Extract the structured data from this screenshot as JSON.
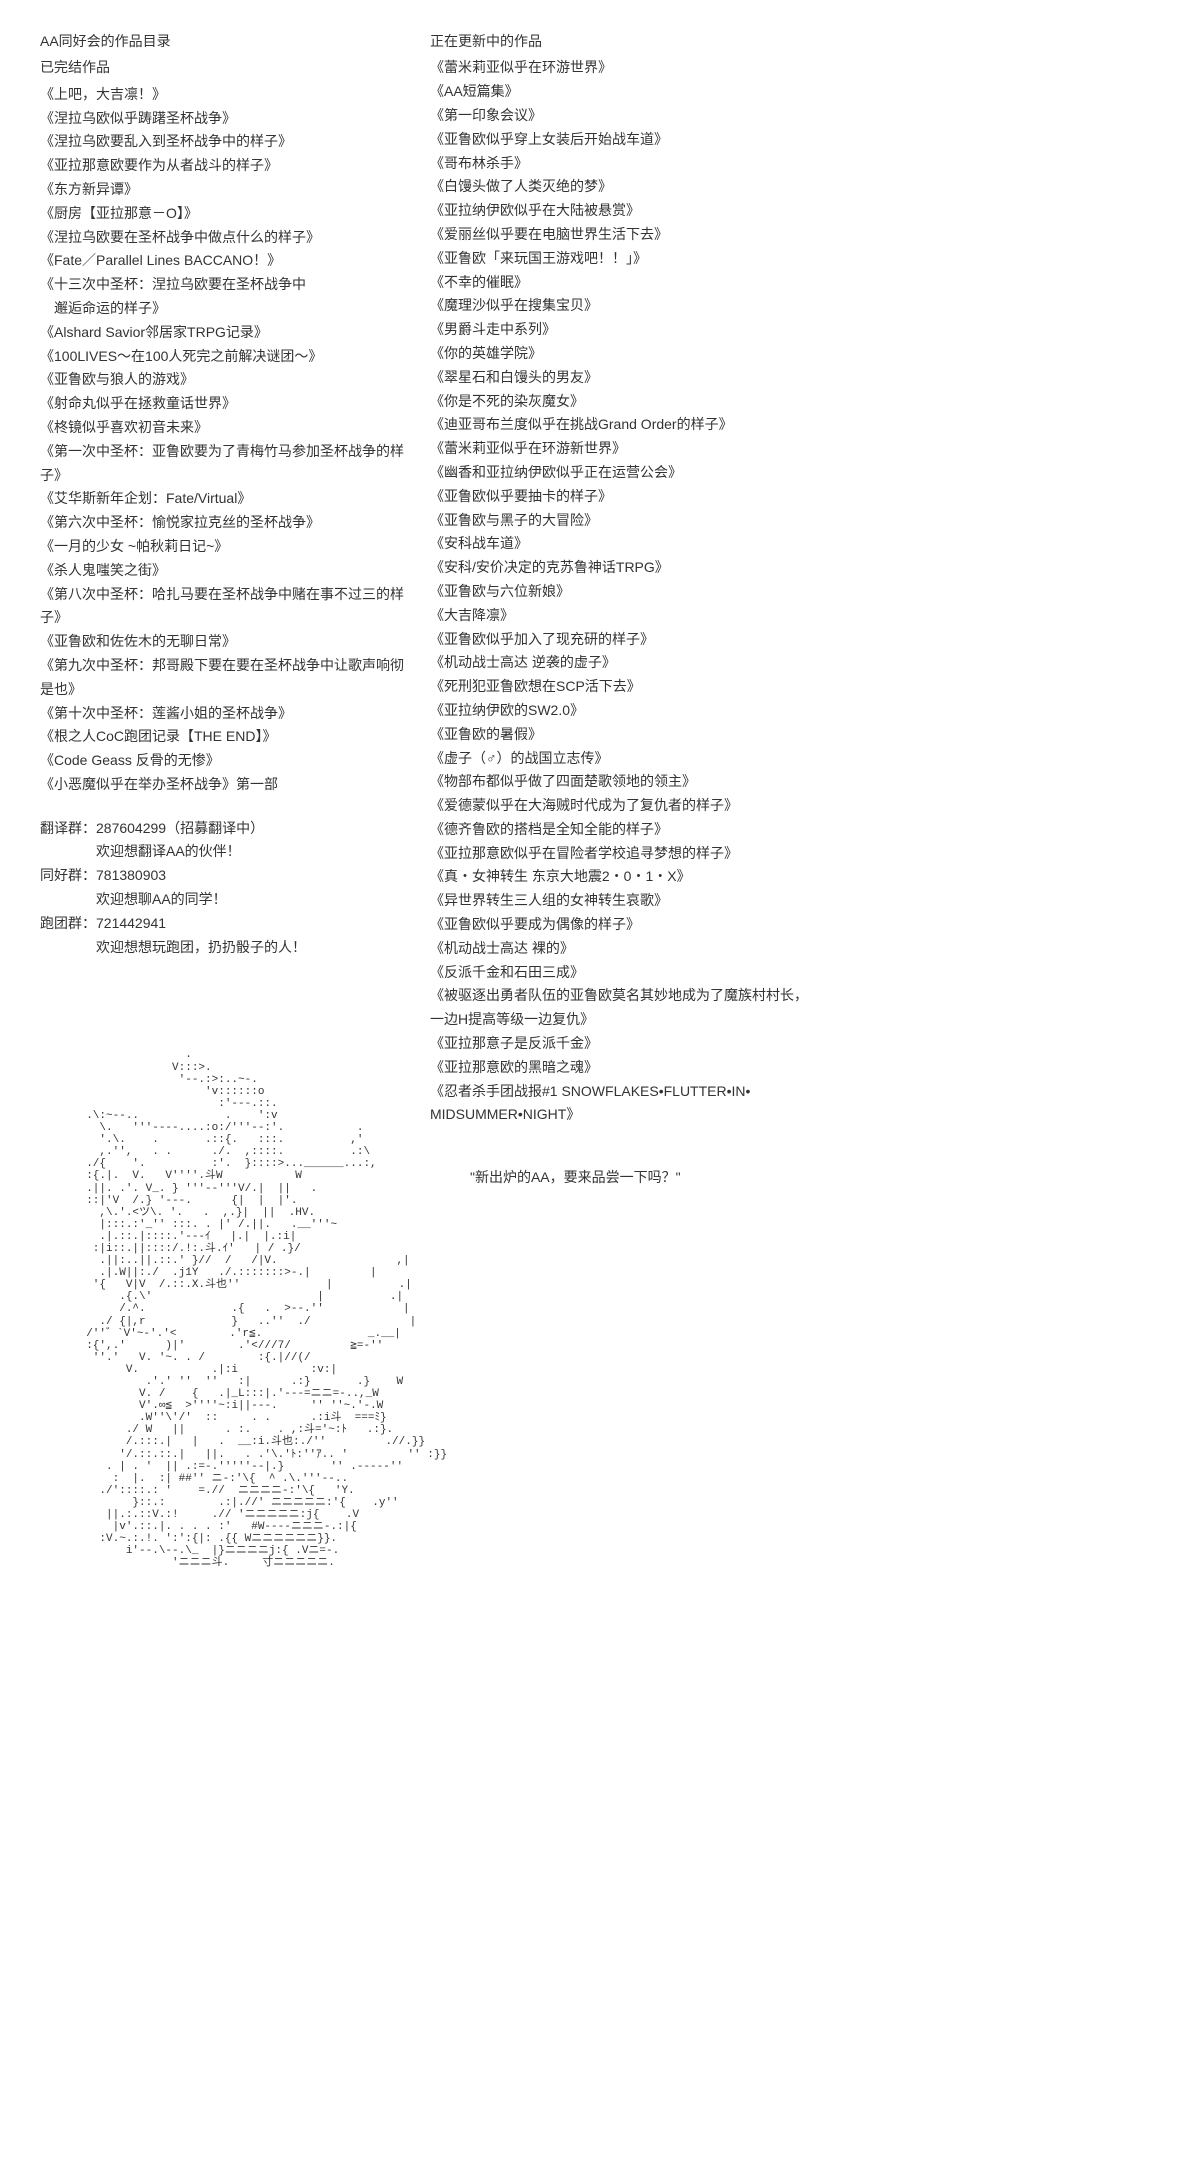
{
  "left": {
    "title": "AA同好会的作品目录",
    "completed_title": "已完结作品",
    "completed_works": [
      "《上吧，大吉凛！》",
      "《涅拉乌欧似乎踌躇圣杯战争》",
      "《涅拉乌欧要乱入到圣杯战争中的样子》",
      "《亚拉那意欧要作为从者战斗的样子》",
      "《东方新异谭》",
      "《厨房【亚拉那意－O】》",
      "《涅拉乌欧要在圣杯战争中做点什么的样子》",
      "《Fate／Parallel Lines BACCANO！》",
      "《十三次中圣杯：涅拉乌欧要在圣杯战争中\n　邂逅命运的样子》",
      "《Alshard Savior邻居家TRPG记录》",
      "《100LIVES～在100人死完之前解决谜团～》",
      "《亚鲁欧与狼人的游戏》",
      "《射命丸似乎在拯救童话世界》",
      "《柊镜似乎喜欢初音未来》",
      "《第一次中圣杯：亚鲁欧要为了青梅竹马参加圣杯战争的样子》",
      "《艾华斯新年企划：Fate/Virtual》",
      "《第六次中圣杯：愉悦家拉克丝的圣杯战争》",
      "《一月的少女 ~帕秋莉日记~》",
      "《杀人鬼嗤笑之街》",
      "《第八次中圣杯：哈扎马要在圣杯战争中赌在事不过三的样子》",
      "《亚鲁欧和佐佐木的无聊日常》",
      "《第九次中圣杯：邦哥殿下要在要在圣杯战争中让歌声响彻是也》",
      "《第十次中圣杯：莲酱小姐的圣杯战争》",
      "《根之人CoC跑团记录【THE END】》",
      "《Code Geass 反骨的无惨》",
      "《小恶魔似乎在举办圣杯战争》第一部"
    ],
    "groups": {
      "translate_label": "翻译群：287604299（招募翻译中）",
      "translate_desc": "欢迎想翻译AA的伙伴！",
      "fan_label": "同好群：781380903",
      "fan_desc": "欢迎想聊AA的同学！",
      "run_label": "跑团群：721442941",
      "run_desc": "欢迎想想玩跑团，扔扔骰子的人！"
    }
  },
  "right": {
    "updating_title": "正在更新中的作品",
    "updating_works": [
      "《蕾米莉亚似乎在环游世界》",
      "《AA短篇集》",
      "《第一印象会议》",
      "《亚鲁欧似乎穿上女装后开始战车道》",
      "《哥布林杀手》",
      "《白馒头做了人类灭绝的梦》",
      "《亚拉纳伊欧似乎在大陆被悬赏》",
      "《爱丽丝似乎要在电脑世界生活下去》",
      "《亚鲁欧「来玩国王游戏吧！！」》",
      "《不幸的催眠》",
      "《魔理沙似乎在搜集宝贝》",
      "《男爵斗走中系列》",
      "《你的英雄学院》",
      "《翠星石和白馒头的男友》",
      "《你是不死的染灰魔女》",
      "《迪亚哥布兰度似乎在挑战Grand Order的样子》",
      "《蕾米莉亚似乎在环游新世界》",
      "《幽香和亚拉纳伊欧似乎正在运营公会》",
      "《亚鲁欧似乎要抽卡的样子》",
      "《亚鲁欧与黑子的大冒险》",
      "《安科战车道》",
      "《安科/安价决定的克苏鲁神话TRPG》",
      "《亚鲁欧与六位新娘》",
      "《大吉降凛》",
      "《亚鲁欧似乎加入了现充研的样子》",
      "《机动战士高达 逆袭的虚子》",
      "《死刑犯亚鲁欧想在SCP活下去》",
      "《亚拉纳伊欧的SW2.0》",
      "《亚鲁欧的暑假》",
      "《虚子（♂）的战国立志传》",
      "《物部布都似乎做了四面楚歌领地的领主》",
      "《爱德蒙似乎在大海贼时代成为了复仇者的样子》",
      "《德齐鲁欧的搭档是全知全能的样子》",
      "《亚拉那意欧似乎在冒险者学校追寻梦想的样子》",
      "《真・女神转生 东京大地震2・0・1・X》",
      "《异世界转生三人组的女神转生哀歌》",
      "《亚鲁欧似乎要成为偶像的样子》",
      "《机动战士高达 裸的》",
      "《反派千金和石田三成》",
      "《被驱逐出勇者队伍的亚鲁欧莫名其妙地成为了魔族村村长，\n一边H提高等级一边复仇》",
      "《亚拉那意子是反派千金》",
      "《亚拉那意欧的黑暗之魂》",
      "《忍者杀手团战报#1 SNOWFLAKES•FLUTTER•IN•\nMIDSUMMER•NIGHT》"
    ],
    "quote": "\"新出炉的AA，要来品尝一下吗？\""
  },
  "ascii_art": "                      .\n                    V:::>.\n                     '--.:>:..~-.\n                         'v::::::o\n                           :'---.::.\n       .\\:~--..             .    ':v\n         \\.   '''----....:o:/'''--:'.           .\n         '.\\.    .       .::{.   :::.          ,'\n         ,.'',   . .      ./.  ,::::.          .:\\\n       ./{    '.          :'.  }::::>...______...:,\n       :{.|.  V.   V''''.斗W           W\n       .||. .'. V_. } '''--'''V/.|  ||   .\n       ::|'V  /.} '---.      {|  |  |'.\n         ,\\.'.<ツ\\. '.   .  ,.}|  ||  .HV.\n         |:::.:'_'' :::. . |' /.||.   .__'''~\n         .|.::.|::::.'---ｲ   |.|  |.:i|\n        :|i::.||::::/.!:.斗.ｲ'   | / .}/\n         .||:..||.::.' }//  /   /|V.                  ,|\n         .|.W||:./  .j1Y   ./.:::::::>-.|         |\n        '{   V|V  /.::.X.斗也''             |          .|\n            .{.\\'                         |          .|\n            /.^.             .{   .  >--.''            |\n         ./ {|,r             }   ..''  ./               |\n       /''゛`V'~-'.'<        .'r≦.                _.__|\n       :{',.'      )|'        .'<///7/         ≧=-''\n        ''.'   V. '~. . /        :{.|//(/\n             V.           .|:i           :v:|\n                .'.' ''  ''   :|      .:}       .}    W\n               V. /    {   .|_L:::|.'---=ニニ=-..,_W\n               V'.∞≦  >''''~:i||---.     '' ''~.'-.W\n               .W''\\'/'  ::     . .      .:i斗  ===ﾐ}\n             ./ W   ||      . :.    . ,:斗='~:ﾄ   .:}.\n             /.:::.|   |   .  __:i.斗也:./''         .//.}}\n            '/.::.::.|   ||.   . .'\\.'ﾄ:''ｱ.. '         '' :}}\n          . | . '  || .:=-.'''''--|.}       '' .-----''\n           :  |.  :| ##'' ニ-:'\\{  ^ .\\.'''--..\n         ./'::::.: '    =.//  ニニニニ-:'\\{   'Y.\n              }::.:        .:|.//' ニニニニニ:'{    .y''\n          ||.:.::V.:!     .// 'ニニニニニ:j{    .V\n           |v'.::.|. . . . :'   #W----ニニニ-.:|{\n         :V.~.:.!. ':':{|: .{{ Wニニニニニニ}}.\n             i'--.\\--.\\_  |}ニニニニj:{ .Vニ=-.\n                    'ニニニ斗.     寸ニニニニニ."
}
